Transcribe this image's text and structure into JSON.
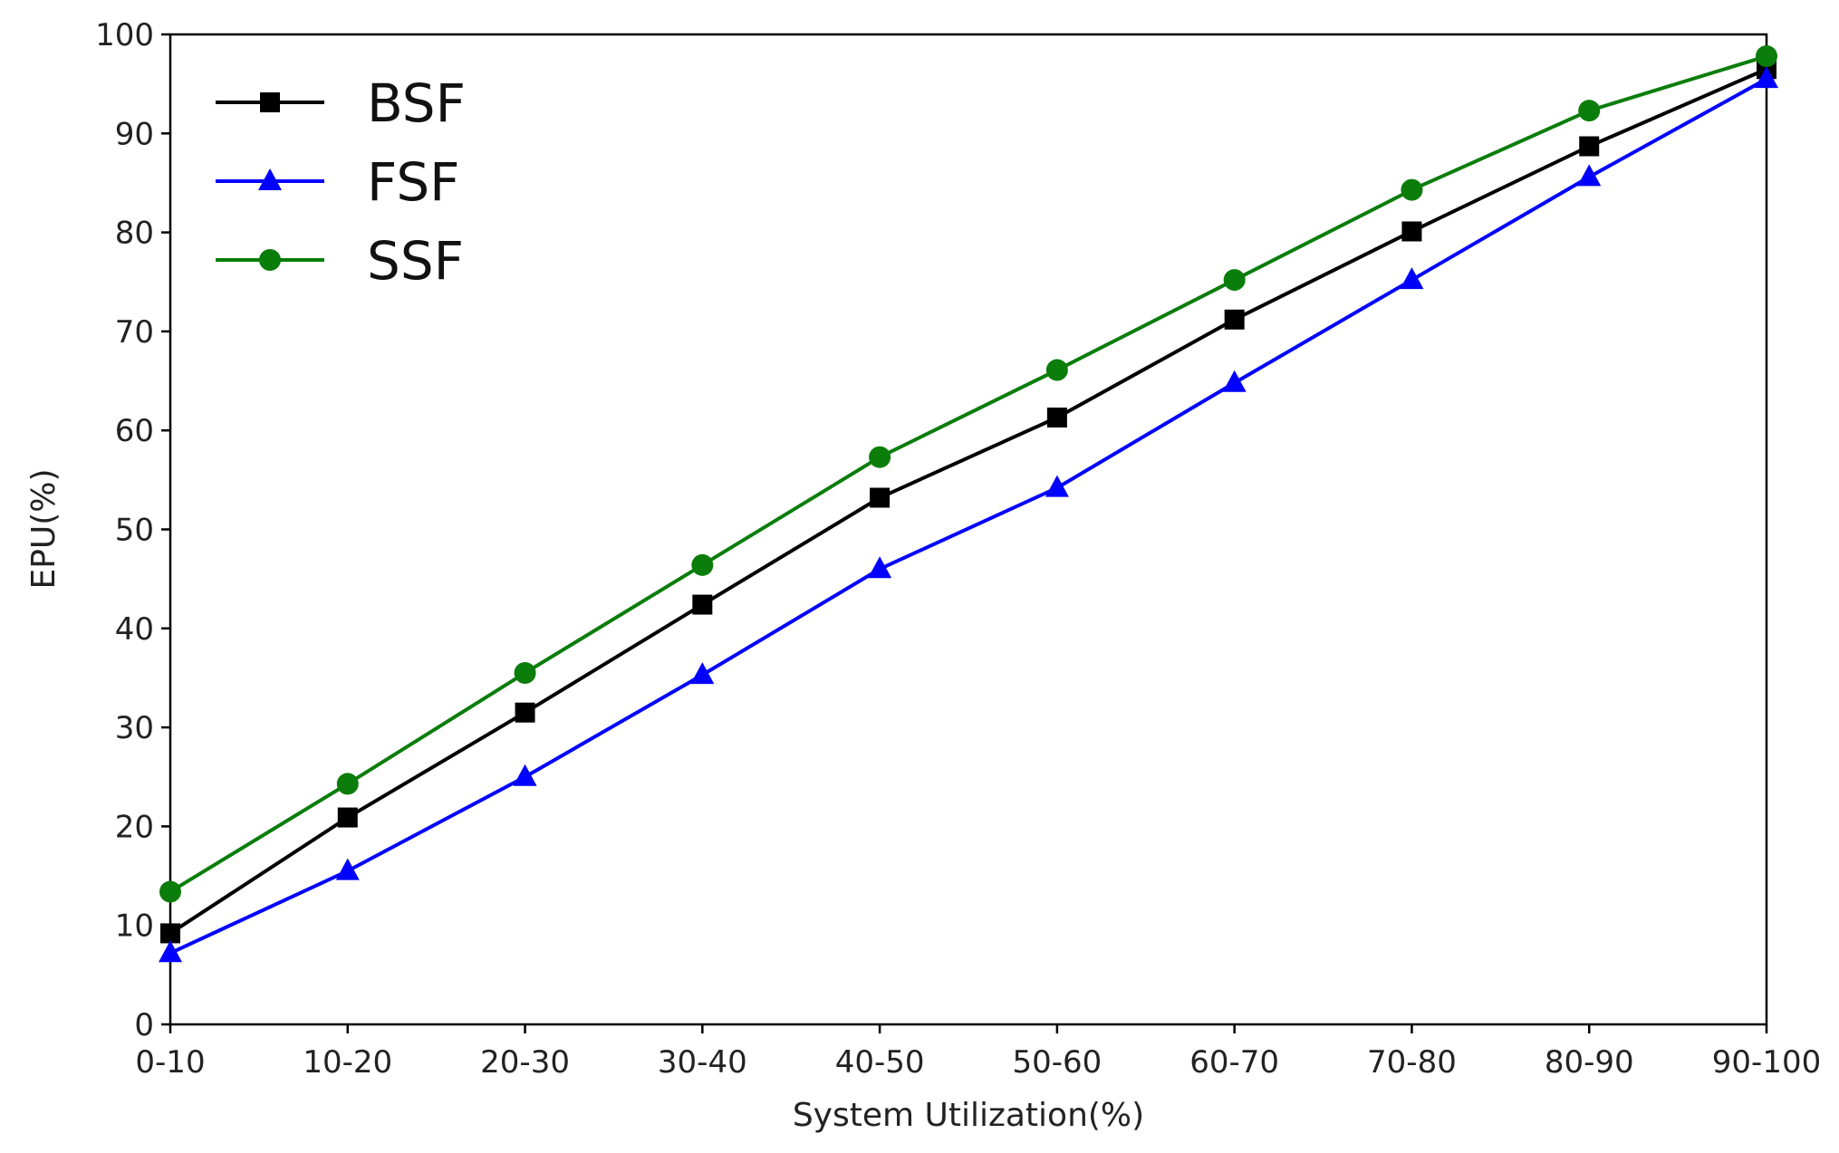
{
  "chart_data": {
    "type": "line",
    "title": "",
    "xlabel": "System Utilization(%)",
    "ylabel": "EPU(%)",
    "categories": [
      "0-10",
      "10-20",
      "20-30",
      "30-40",
      "40-50",
      "50-60",
      "60-70",
      "70-80",
      "80-90",
      "90-100"
    ],
    "ylim": [
      0,
      100
    ],
    "yticks": [
      0,
      10,
      20,
      30,
      40,
      50,
      60,
      70,
      80,
      90,
      100
    ],
    "grid": false,
    "legend_position": "top-left",
    "series": [
      {
        "name": "BSF",
        "color": "#000000",
        "marker": "square",
        "values": [
          9.2,
          20.9,
          31.5,
          42.4,
          53.2,
          61.3,
          71.2,
          80.1,
          88.7,
          96.5
        ]
      },
      {
        "name": "FSF",
        "color": "#0000ff",
        "marker": "triangle",
        "values": [
          7.2,
          15.5,
          25.0,
          35.3,
          46.0,
          54.2,
          64.8,
          75.2,
          85.6,
          95.5
        ]
      },
      {
        "name": "SSF",
        "color": "#0a7d0a",
        "marker": "circle",
        "values": [
          13.4,
          24.3,
          35.5,
          46.4,
          57.3,
          66.1,
          75.2,
          84.3,
          92.3,
          97.8
        ]
      }
    ]
  }
}
